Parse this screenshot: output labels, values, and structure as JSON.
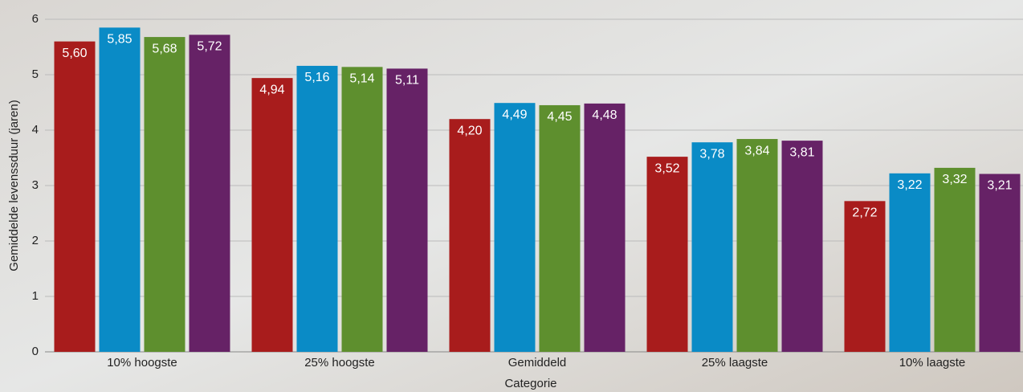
{
  "chart_data": {
    "type": "bar",
    "y_label": "Gemiddelde levenssduur (jaren)",
    "x_label": "Categorie",
    "categories": [
      "10% hoogste",
      "25% hoogste",
      "Gemiddeld",
      "25% laagste",
      "10% laagste"
    ],
    "series": [
      {
        "color": "#a81c1c",
        "values": [
          5.6,
          4.94,
          4.2,
          3.52,
          2.72
        ],
        "value_labels": [
          "5,60",
          "4,94",
          "4,20",
          "3,52",
          "2,72"
        ]
      },
      {
        "color": "#0a8bc6",
        "values": [
          5.85,
          5.16,
          4.49,
          3.78,
          3.22
        ],
        "value_labels": [
          "5,85",
          "5,16",
          "4,49",
          "3,78",
          "3,22"
        ]
      },
      {
        "color": "#5e8f2e",
        "values": [
          5.68,
          5.14,
          4.45,
          3.84,
          3.32
        ],
        "value_labels": [
          "5,68",
          "5,14",
          "4,45",
          "3,84",
          "3,32"
        ]
      },
      {
        "color": "#662266",
        "values": [
          5.72,
          5.11,
          4.48,
          3.81,
          3.21
        ],
        "value_labels": [
          "5,72",
          "5,11",
          "4,48",
          "3,81",
          "3,21"
        ]
      }
    ],
    "ylim": [
      0,
      6
    ],
    "yticks": [
      0,
      1,
      2,
      3,
      4,
      5,
      6
    ],
    "grid": true
  }
}
